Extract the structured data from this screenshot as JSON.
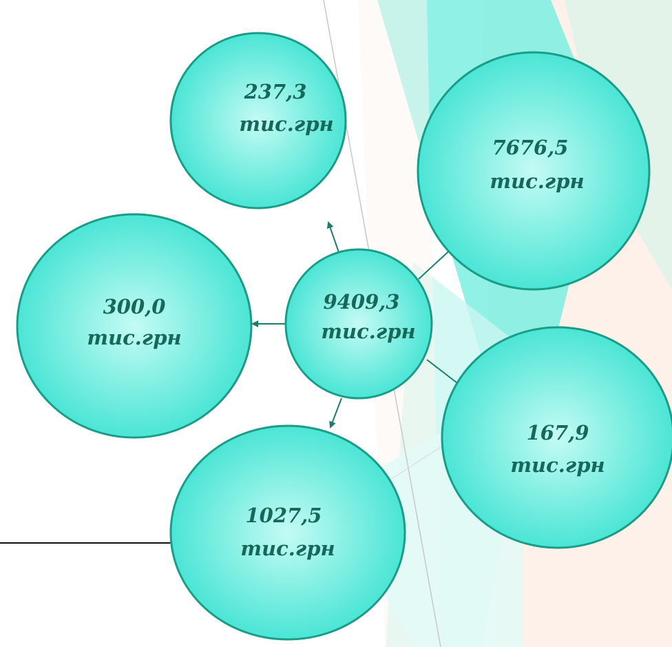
{
  "nodes": [
    {
      "value": "9409,3",
      "unit": "тис.грн"
    },
    {
      "value": "237,3",
      "unit": "тис.грн"
    },
    {
      "value": "7676,5",
      "unit": "тис.грн"
    },
    {
      "value": "300,0",
      "unit": "тис.грн"
    },
    {
      "value": "167,9",
      "unit": "тис.грн"
    },
    {
      "value": "1027,5",
      "unit": "тис.грн"
    }
  ]
}
